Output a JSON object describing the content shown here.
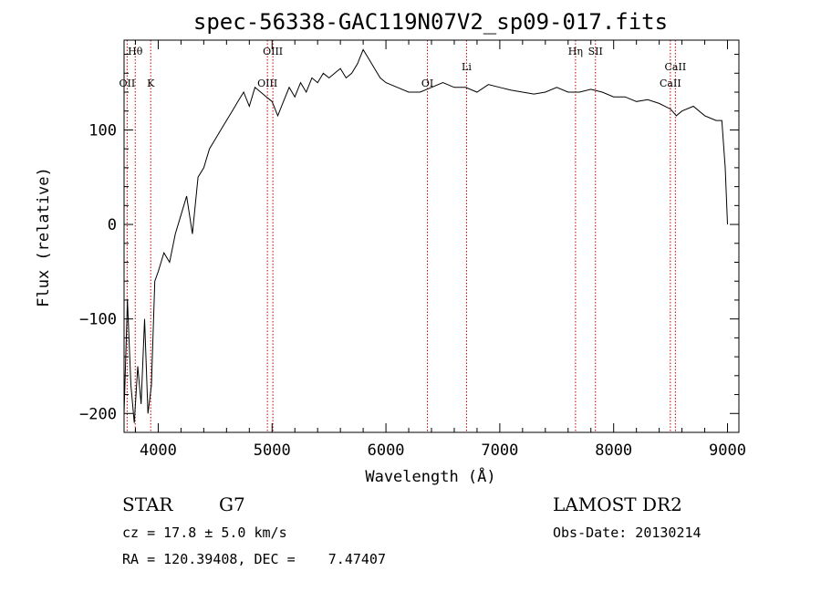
{
  "chart_data": {
    "type": "line",
    "title": "spec-56338-GAC119N07V2_sp09-017.fits",
    "xlabel": "Wavelength (Å)",
    "ylabel": "Flux (relative)",
    "xlim": [
      3700,
      9100
    ],
    "ylim": [
      -220,
      195
    ],
    "xticks": [
      4000,
      5000,
      6000,
      7000,
      8000,
      9000
    ],
    "xtick_labels": [
      "4000",
      "5000",
      "6000",
      "7000",
      "8000",
      "9000"
    ],
    "yticks": [
      -200,
      -100,
      0,
      100
    ],
    "ytick_labels": [
      "−200",
      "−100",
      "0",
      "100"
    ],
    "spectrum": {
      "name": "flux",
      "x": [
        3700,
        3730,
        3760,
        3790,
        3820,
        3850,
        3880,
        3910,
        3940,
        3970,
        4000,
        4050,
        4100,
        4150,
        4200,
        4250,
        4300,
        4350,
        4400,
        4450,
        4500,
        4550,
        4600,
        4650,
        4700,
        4750,
        4800,
        4850,
        4900,
        4950,
        5000,
        5050,
        5100,
        5150,
        5200,
        5250,
        5300,
        5350,
        5400,
        5450,
        5500,
        5550,
        5600,
        5650,
        5700,
        5750,
        5800,
        5850,
        5900,
        5950,
        6000,
        6100,
        6200,
        6300,
        6400,
        6500,
        6600,
        6700,
        6800,
        6900,
        7000,
        7100,
        7200,
        7300,
        7400,
        7500,
        7600,
        7700,
        7800,
        7900,
        8000,
        8100,
        8200,
        8300,
        8400,
        8500,
        8550,
        8600,
        8700,
        8800,
        8900,
        8950,
        8980,
        9000
      ],
      "y": [
        -200,
        -80,
        -170,
        -210,
        -150,
        -190,
        -100,
        -200,
        -170,
        -60,
        -50,
        -30,
        -40,
        -10,
        10,
        30,
        -10,
        50,
        60,
        80,
        90,
        100,
        110,
        120,
        130,
        140,
        125,
        145,
        140,
        135,
        130,
        115,
        130,
        145,
        135,
        150,
        140,
        155,
        150,
        160,
        155,
        160,
        165,
        155,
        160,
        170,
        185,
        175,
        165,
        155,
        150,
        145,
        140,
        140,
        145,
        150,
        145,
        145,
        140,
        148,
        145,
        142,
        140,
        138,
        140,
        145,
        140,
        140,
        143,
        140,
        135,
        135,
        130,
        132,
        128,
        122,
        115,
        120,
        125,
        115,
        110,
        110,
        60,
        0
      ]
    },
    "reference_lines": [
      {
        "wavelength": 3727,
        "label": "OII",
        "label_row": "lower"
      },
      {
        "wavelength": 3798,
        "label": "Hθ",
        "label_row": "upper"
      },
      {
        "wavelength": 3934,
        "label": "K",
        "label_row": "lower"
      },
      {
        "wavelength": 4959,
        "label": "OIII",
        "label_row": "lower"
      },
      {
        "wavelength": 5007,
        "label": "OIII",
        "label_row": "upper"
      },
      {
        "wavelength": 6364,
        "label": "OI",
        "label_row": "lower"
      },
      {
        "wavelength": 6708,
        "label": "Li",
        "label_row": "middle"
      },
      {
        "wavelength": 7665,
        "label": "Hη",
        "label_row": "upper"
      },
      {
        "wavelength": 7840,
        "label": "SII",
        "label_row": "upper"
      },
      {
        "wavelength": 8498,
        "label": "CaII",
        "label_row": "lower"
      },
      {
        "wavelength": 8542,
        "label": "CaII",
        "label_row": "middle"
      }
    ]
  },
  "info": {
    "object_class": "STAR",
    "subclass": "G7",
    "survey": "LAMOST DR2",
    "redshift_line": "cz = 17.8 ± 5.0 km/s",
    "obs_date_line": "Obs-Date: 20130214",
    "coords_line": "RA = 120.39408, DEC =    7.47407"
  },
  "colors": {
    "spectrum": "#000000",
    "reference_line": "#c00000",
    "axes": "#000000"
  }
}
